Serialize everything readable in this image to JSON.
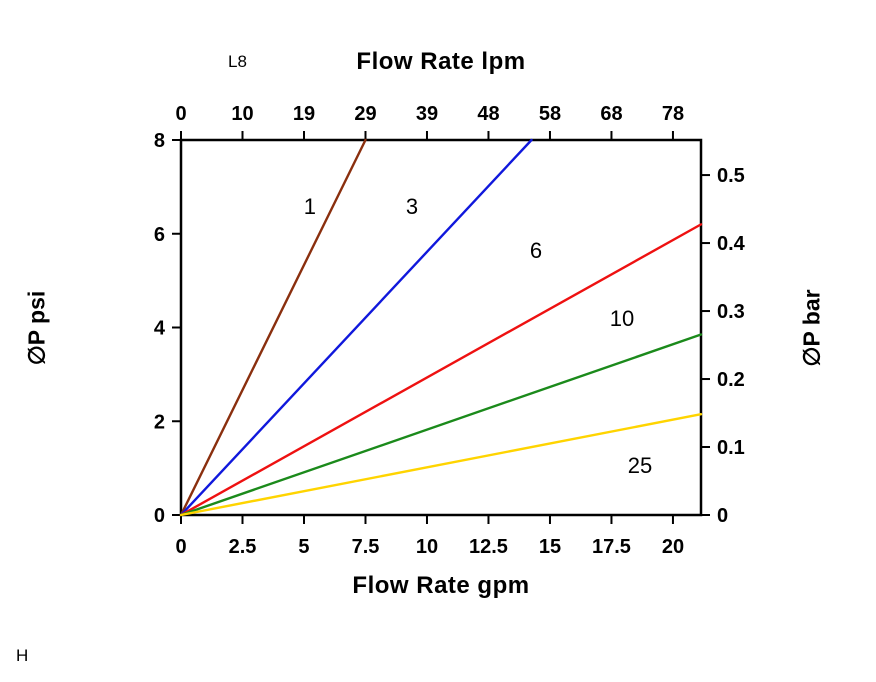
{
  "annotations": {
    "model_code": "L8",
    "footnote": "H"
  },
  "chart_data": {
    "type": "line",
    "title_top": "Flow Rate lpm",
    "xlabel_bottom": "Flow Rate gpm",
    "ylabel_left": "∅P psi",
    "ylabel_right": "∅P bar",
    "grid": false,
    "x_axis_bottom": {
      "unit": "gpm",
      "range": [
        0,
        21.14
      ],
      "tick_labels": [
        "0",
        "2.5",
        "5",
        "7.5",
        "10",
        "12.5",
        "15",
        "17.5",
        "20"
      ],
      "tick_values_gpm": [
        0,
        2.5,
        5,
        7.5,
        10,
        12.5,
        15,
        17.5,
        20
      ]
    },
    "x_axis_top": {
      "unit": "lpm",
      "tick_labels": [
        "0",
        "10",
        "19",
        "29",
        "39",
        "48",
        "58",
        "68",
        "78"
      ],
      "tick_positions_gpm": [
        0,
        2.5,
        5,
        7.5,
        10,
        12.5,
        15,
        17.5,
        20
      ]
    },
    "y_axis_left": {
      "unit": "psi",
      "range": [
        0,
        8
      ],
      "tick_labels": [
        "0",
        "2",
        "4",
        "6",
        "8"
      ],
      "tick_values_psi": [
        0,
        2,
        4,
        6,
        8
      ]
    },
    "y_axis_right": {
      "unit": "bar",
      "psi_per_bar": 14.5038,
      "tick_labels": [
        "0",
        "0.1",
        "0.2",
        "0.3",
        "0.4",
        "0.5"
      ],
      "tick_values_bar": [
        0,
        0.1,
        0.2,
        0.3,
        0.4,
        0.5
      ]
    },
    "series": [
      {
        "name": "1",
        "color": "#8a2f0e",
        "points_gpm_psi": [
          [
            0,
            0
          ],
          [
            7.5,
            8
          ]
        ],
        "label_pos_gpm_psi": [
          5.24,
          6.59
        ]
      },
      {
        "name": "3",
        "color": "#1018dc",
        "points_gpm_psi": [
          [
            0,
            0
          ],
          [
            14.25,
            8
          ]
        ],
        "label_pos_gpm_psi": [
          9.39,
          6.59
        ]
      },
      {
        "name": "6",
        "color": "#ee1111",
        "points_gpm_psi": [
          [
            0,
            0
          ],
          [
            21.14,
            6.2
          ]
        ],
        "label_pos_gpm_psi": [
          14.43,
          5.65
        ]
      },
      {
        "name": "10",
        "color": "#1b8a1b",
        "points_gpm_psi": [
          [
            0,
            0
          ],
          [
            21.14,
            3.85
          ]
        ],
        "label_pos_gpm_psi": [
          17.93,
          4.2
        ]
      },
      {
        "name": "25",
        "color": "#ffd400",
        "points_gpm_psi": [
          [
            0,
            0
          ],
          [
            21.14,
            2.15
          ]
        ],
        "label_pos_gpm_psi": [
          18.66,
          1.07
        ]
      }
    ]
  }
}
